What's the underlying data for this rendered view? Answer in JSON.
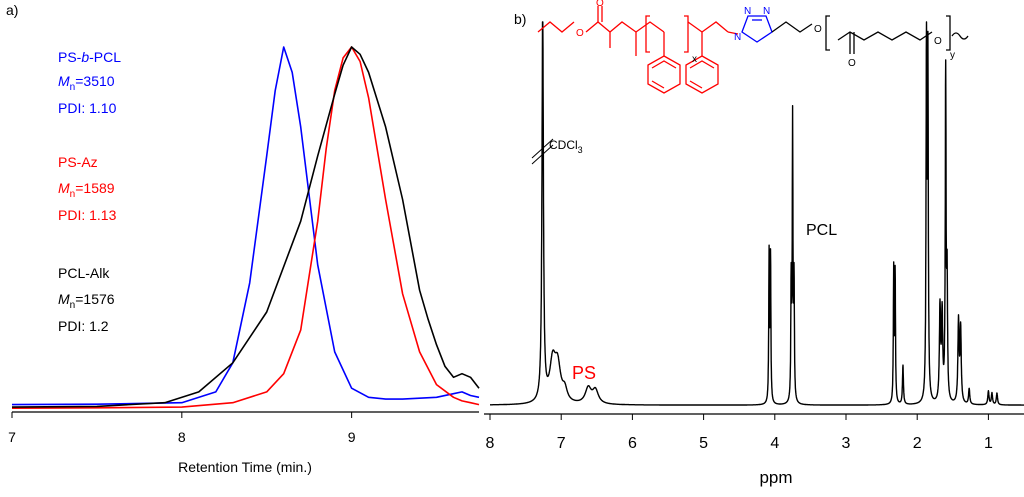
{
  "chart_data": [
    {
      "type": "line",
      "panel_label": "a)",
      "xlabel": "Retention Time (min.)",
      "ylabel": "",
      "xlim": [
        7,
        9.75
      ],
      "ylim": [
        0,
        1
      ],
      "x_ticks": [
        "7",
        "8",
        "9"
      ],
      "grid": false,
      "series": [
        {
          "color": "#0000ff",
          "x": [
            7.0,
            7.5,
            8.0,
            8.2,
            8.3,
            8.4,
            8.5,
            8.55,
            8.6,
            8.65,
            8.7,
            8.8,
            8.9,
            9.0,
            9.1,
            9.2,
            9.3,
            9.5,
            9.6,
            9.65,
            9.7,
            9.75
          ],
          "y": [
            0.015,
            0.016,
            0.02,
            0.05,
            0.13,
            0.35,
            0.7,
            0.88,
            1.0,
            0.93,
            0.78,
            0.4,
            0.16,
            0.06,
            0.035,
            0.03,
            0.03,
            0.035,
            0.045,
            0.05,
            0.04,
            0.035
          ]
        },
        {
          "color": "#ff0000",
          "x": [
            7.0,
            7.5,
            8.0,
            8.3,
            8.5,
            8.6,
            8.7,
            8.8,
            8.85,
            8.9,
            8.95,
            9.0,
            9.05,
            9.1,
            9.2,
            9.3,
            9.4,
            9.5,
            9.6,
            9.65,
            9.7,
            9.75
          ],
          "y": [
            0.005,
            0.006,
            0.008,
            0.02,
            0.05,
            0.1,
            0.22,
            0.52,
            0.72,
            0.88,
            0.97,
            1.0,
            0.96,
            0.86,
            0.58,
            0.32,
            0.16,
            0.07,
            0.035,
            0.025,
            0.02,
            0.015
          ]
        },
        {
          "color": "#000000",
          "x": [
            7.0,
            7.5,
            7.9,
            8.1,
            8.3,
            8.5,
            8.7,
            8.8,
            8.9,
            8.95,
            9.0,
            9.05,
            9.1,
            9.2,
            9.3,
            9.4,
            9.45,
            9.5,
            9.55,
            9.6,
            9.65,
            9.7,
            9.75
          ],
          "y": [
            0.008,
            0.01,
            0.02,
            0.05,
            0.13,
            0.27,
            0.52,
            0.7,
            0.87,
            0.95,
            1.0,
            0.98,
            0.93,
            0.78,
            0.58,
            0.33,
            0.25,
            0.18,
            0.12,
            0.09,
            0.1,
            0.09,
            0.06
          ]
        }
      ],
      "annotations": [
        {
          "color": "#0000ff",
          "name_pre": "PS-",
          "name_italic": "b",
          "name_post": "-PCL",
          "mn_label": "M",
          "mn_sub": "n",
          "mn_value": "=3510",
          "pdi": "PDI: 1.10"
        },
        {
          "color": "#ff0000",
          "name_pre": "PS-Az",
          "name_italic": "",
          "name_post": "",
          "mn_label": "M",
          "mn_sub": "n",
          "mn_value": "=1589",
          "pdi": "PDI: 1.13"
        },
        {
          "color": "#000000",
          "name_pre": "PCL-Alk",
          "name_italic": "",
          "name_post": "",
          "mn_label": "M",
          "mn_sub": "n",
          "mn_value": "=1576",
          "pdi": "PDI: 1.2"
        }
      ]
    },
    {
      "type": "line",
      "panel_label": "b)",
      "xlabel": "ppm",
      "ylabel": "",
      "xlim": [
        8,
        0.5
      ],
      "x_ticks": [
        "8",
        "7",
        "6",
        "5",
        "4",
        "3",
        "2",
        "1"
      ],
      "x_tick_values": [
        8,
        7,
        6,
        5,
        4,
        3,
        2,
        1
      ],
      "grid": false,
      "ylim": [
        0,
        1
      ],
      "baseline": 0.015,
      "peaks": [
        {
          "x": 7.26,
          "y": 1.0,
          "w": 0.012
        },
        {
          "x": 7.12,
          "y": 0.1,
          "w": 0.05
        },
        {
          "x": 7.05,
          "y": 0.09,
          "w": 0.05
        },
        {
          "x": 6.95,
          "y": 0.03,
          "w": 0.04
        },
        {
          "x": 6.62,
          "y": 0.04,
          "w": 0.05
        },
        {
          "x": 6.52,
          "y": 0.035,
          "w": 0.05
        },
        {
          "x": 4.08,
          "y": 0.38,
          "w": 0.006
        },
        {
          "x": 4.06,
          "y": 0.37,
          "w": 0.006
        },
        {
          "x": 3.77,
          "y": 0.3,
          "w": 0.006
        },
        {
          "x": 3.75,
          "y": 0.72,
          "w": 0.006
        },
        {
          "x": 3.73,
          "y": 0.3,
          "w": 0.006
        },
        {
          "x": 2.33,
          "y": 0.34,
          "w": 0.006
        },
        {
          "x": 2.31,
          "y": 0.33,
          "w": 0.006
        },
        {
          "x": 2.2,
          "y": 0.1,
          "w": 0.008
        },
        {
          "x": 1.87,
          "y": 0.9,
          "w": 0.007
        },
        {
          "x": 1.85,
          "y": 0.86,
          "w": 0.007
        },
        {
          "x": 1.68,
          "y": 0.24,
          "w": 0.01
        },
        {
          "x": 1.65,
          "y": 0.22,
          "w": 0.01
        },
        {
          "x": 1.6,
          "y": 0.84,
          "w": 0.007
        },
        {
          "x": 1.58,
          "y": 0.3,
          "w": 0.007
        },
        {
          "x": 1.42,
          "y": 0.21,
          "w": 0.01
        },
        {
          "x": 1.39,
          "y": 0.19,
          "w": 0.01
        },
        {
          "x": 1.27,
          "y": 0.04,
          "w": 0.01
        },
        {
          "x": 1.0,
          "y": 0.035,
          "w": 0.01
        },
        {
          "x": 0.95,
          "y": 0.03,
          "w": 0.01
        },
        {
          "x": 0.88,
          "y": 0.03,
          "w": 0.01
        }
      ],
      "annotations": {
        "solvent": "CDCl",
        "solvent_sub": "3",
        "ps_label": "PS",
        "pcl_label": "PCL",
        "structure": {
          "subscript_x": "x",
          "subscript_y": "y",
          "o1": "O",
          "o2": "O",
          "o3": "O",
          "o4": "O",
          "n1": "N",
          "n2": "N",
          "n3": "N"
        }
      }
    }
  ]
}
